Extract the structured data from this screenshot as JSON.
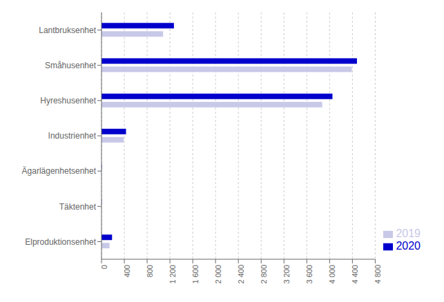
{
  "chart_data": {
    "type": "bar",
    "orientation": "horizontal",
    "categories": [
      "Lantbruksenhet",
      "Småhusenhet",
      "Hyreshusenhet",
      "Industrienhet",
      "Ägarlägenhetsenhet",
      "Täktenhet",
      "Elproduktionsenhet"
    ],
    "series": [
      {
        "name": "2020",
        "color": "#0000CC",
        "values": [
          1270,
          4480,
          4050,
          430,
          5,
          3,
          185
        ]
      },
      {
        "name": "2019",
        "color": "#C8C8E8",
        "values": [
          1080,
          4390,
          3870,
          390,
          4,
          2,
          140
        ]
      }
    ],
    "xlim": [
      0,
      4800
    ],
    "xticks": [
      0,
      400,
      800,
      {
        "value": 1200,
        "label": "1 200"
      },
      {
        "value": 1600,
        "label": "1 600"
      },
      {
        "value": 2000,
        "label": "2 000"
      },
      {
        "value": 2400,
        "label": "2 400"
      },
      {
        "value": 2800,
        "label": "2 800"
      },
      {
        "value": 3200,
        "label": "3 200"
      },
      {
        "value": 3600,
        "label": "3 600"
      },
      {
        "value": 4000,
        "label": "4 000"
      },
      {
        "value": 4400,
        "label": "4 400"
      },
      {
        "value": 4800,
        "label": "4 800"
      }
    ],
    "grid": true,
    "legend": "lower right"
  }
}
